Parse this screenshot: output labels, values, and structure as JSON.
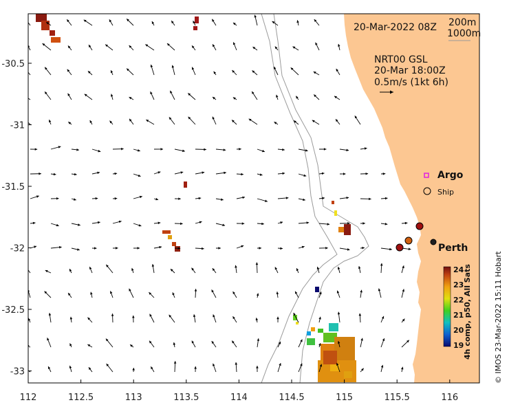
{
  "map": {
    "date_label": "20-Mar-2022 08Z",
    "isobath_labels": [
      "200m",
      "1000m"
    ],
    "current_title": "NRT00 GSL",
    "current_time": "20-Mar 18:00Z",
    "current_scale": "0.5m/s (1kt 6h)",
    "x_ticks": [
      "112",
      "112.5",
      "113",
      "113.5",
      "114",
      "114.5",
      "115",
      "115.5",
      "116"
    ],
    "y_ticks": [
      "-30.5",
      "-31",
      "-31.5",
      "-32",
      "-32.5",
      "-33"
    ],
    "legend": {
      "argo": "Argo",
      "ship": "Ship"
    },
    "city": "Perth",
    "colorbar": {
      "title": "4h comp, p50, All Sats",
      "ticks": [
        "24",
        "23",
        "22",
        "21",
        "20",
        "19"
      ],
      "min": 19,
      "max": 24
    },
    "credit": "© IMOS 23-Mar-2022 15:11 Hobart",
    "colors": {
      "land": "#fcc792",
      "arrow": "#000000",
      "isobath": "#9a9a9a",
      "ship": "#a01010"
    }
  }
}
